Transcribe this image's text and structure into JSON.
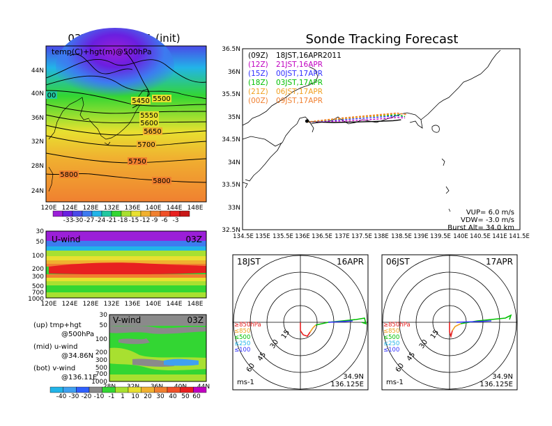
{
  "colors": {
    "frame": "#000000",
    "temp_scale": [
      "#9b1fd8",
      "#6a1fe0",
      "#4a4ae8",
      "#3d7bf0",
      "#22b4e8",
      "#22c8a0",
      "#33d633",
      "#a8e030",
      "#e8e030",
      "#f0b030",
      "#f08030",
      "#f05028",
      "#e82020",
      "#c81818"
    ],
    "wind_scale": [
      "#22b4e8",
      "#3fa0f0",
      "#2f60ff",
      "#8a8a8a",
      "#33d633",
      "#a8e030",
      "#e8e030",
      "#f0b030",
      "#f08030",
      "#f05028",
      "#e82020",
      "#c000c0"
    ],
    "track_09z": "#000000",
    "track_12z": "#c000c0",
    "track_15z": "#2f2fff",
    "track_18z": "#00c000",
    "track_21z": "#f0a020",
    "track_00z": "#f08030"
  },
  "left": {
    "top_title": "03Z,16APR2011 (init)",
    "temp_panel": {
      "label": "temp(C)+hgt(m)@500hPa",
      "lat_ticks": [
        "44N",
        "40N",
        "36N",
        "32N",
        "28N",
        "24N"
      ],
      "lon_ticks": [
        "120E",
        "124E",
        "128E",
        "132E",
        "136E",
        "140E",
        "144E",
        "148E"
      ],
      "contour_labels": [
        "5450",
        "5500",
        "5550",
        "5600",
        "5650",
        "5700",
        "5750",
        "5800",
        "5800",
        "00"
      ],
      "colorbar_ticks": [
        "-33",
        "-30",
        "-27",
        "-24",
        "-21",
        "-18",
        "-15",
        "-12",
        "-9",
        "-6",
        "-3"
      ]
    },
    "uwind_panel": {
      "label": "U-wind",
      "time": "03Z",
      "pres_ticks": [
        "30",
        "50",
        "100",
        "200",
        "300",
        "500",
        "700",
        "1000"
      ],
      "lon_ticks": [
        "120E",
        "124E",
        "128E",
        "132E",
        "136E",
        "140E",
        "144E",
        "148E"
      ]
    },
    "vwind_panel": {
      "label": "V-wind",
      "time": "03Z",
      "pres_ticks": [
        "30",
        "50",
        "100",
        "200",
        "300",
        "500",
        "700",
        "1000"
      ],
      "lat_ticks": [
        "28N",
        "32N",
        "36N",
        "40N",
        "44N"
      ]
    },
    "legend": {
      "line1": "(up) tmp+hgt",
      "line2": "@500hPa",
      "line3": "(mid) u-wind",
      "line4": "@34.86N",
      "line5": "(bot) v-wind",
      "line6": "@136.11E"
    },
    "wind_colorbar_ticks": [
      "-40",
      "-30",
      "-20",
      "-10",
      "-1",
      "1",
      "10",
      "20",
      "30",
      "40",
      "50",
      "60"
    ]
  },
  "right": {
    "title": "Sonde Tracking Forecast",
    "map": {
      "lat_ticks": [
        "36.5N",
        "36N",
        "35.5N",
        "35N",
        "34.5N",
        "34N",
        "33.5N",
        "33N",
        "32.5N"
      ],
      "lon_ticks": [
        "134.5E",
        "135E",
        "135.5E",
        "136E",
        "136.5E",
        "137E",
        "137.5E",
        "138E",
        "138.5E",
        "139E",
        "139.5E",
        "140E",
        "140.5E",
        "141E",
        "141.5E"
      ],
      "runs": [
        {
          "code": "(09Z)",
          "label": "18JST,16APR2011"
        },
        {
          "code": "(12Z)",
          "label": "21JST,16APR"
        },
        {
          "code": "(15Z)",
          "label": "00JST,17APR"
        },
        {
          "code": "(18Z)",
          "label": "03JST,17APR"
        },
        {
          "code": "(21Z)",
          "label": "06JST,17APR"
        },
        {
          "code": "(00Z)",
          "label": "09JST,17APR"
        }
      ],
      "vup": "VUP= 6.0 m/s",
      "vdw": "VDW= -3.0 m/s",
      "burst": "Burst Alt= 34.0 km"
    },
    "polar_left": {
      "time": "18JST",
      "date": "16APR",
      "ring_labels": [
        "15",
        "30",
        "45",
        "60"
      ],
      "levels": [
        "≥850hPa",
        "≤850",
        "≤500",
        "≤250",
        "≤100"
      ],
      "unit": "ms-1",
      "lat": "34.9N",
      "lon": "136.125E"
    },
    "polar_right": {
      "time": "06JST",
      "date": "17APR",
      "ring_labels": [
        "15",
        "30",
        "45",
        "60"
      ],
      "levels": [
        "≥850hPa",
        "≤850",
        "≤500",
        "≤250",
        "≤100"
      ],
      "unit": "ms-1",
      "lat": "34.9N",
      "lon": "136.125E"
    }
  },
  "chart_data": [
    {
      "type": "heatmap",
      "title": "03Z,16APR2011 (init)",
      "subtitle": "temp(C)+hgt(m)@500hPa",
      "xlim": [
        120,
        150
      ],
      "ylim": [
        22,
        48
      ],
      "contour_levels_m": [
        5450,
        5500,
        5550,
        5600,
        5650,
        5700,
        5750,
        5800
      ],
      "color_levels_C": [
        -33,
        -30,
        -27,
        -24,
        -21,
        -18,
        -15,
        -12,
        -9,
        -6,
        -3
      ]
    },
    {
      "type": "heatmap",
      "subtitle": "U-wind",
      "xlim": [
        120,
        150
      ],
      "yaxis_hPa": [
        30,
        50,
        100,
        200,
        300,
        500,
        700,
        1000
      ],
      "color_levels_ms": [
        -40,
        -30,
        -20,
        -10,
        -1,
        1,
        10,
        20,
        30,
        40,
        50,
        60
      ]
    },
    {
      "type": "heatmap",
      "subtitle": "V-wind",
      "xlim": [
        26,
        44
      ],
      "yaxis_hPa": [
        30,
        50,
        100,
        200,
        300,
        500,
        700,
        1000
      ],
      "color_levels_ms": [
        -40,
        -30,
        -20,
        -10,
        -1,
        1,
        10,
        20,
        30,
        40,
        50,
        60
      ]
    },
    {
      "type": "line",
      "title": "Sonde Tracking Forecast",
      "xlim": [
        134.5,
        141.5
      ],
      "ylim": [
        32.5,
        36.5
      ],
      "launch": {
        "lon": 136.125,
        "lat": 34.9
      },
      "series": [
        {
          "name": "(09Z) 18JST,16APR2011",
          "x": [
            136.125,
            136.4,
            136.8,
            137.3,
            137.8,
            138.3,
            138.5
          ],
          "y": [
            34.88,
            34.88,
            34.87,
            34.88,
            34.89,
            34.91,
            34.93
          ]
        },
        {
          "name": "(12Z) 21JST,16APR",
          "x": [
            136.125,
            136.5,
            137.0,
            137.5,
            138.0,
            138.4,
            138.6
          ],
          "y": [
            34.88,
            34.89,
            34.9,
            34.92,
            34.95,
            34.98,
            34.97
          ]
        },
        {
          "name": "(15Z) 00JST,17APR",
          "x": [
            136.125,
            136.5,
            137.0,
            137.5,
            138.0,
            138.4,
            138.6
          ],
          "y": [
            34.88,
            34.9,
            34.93,
            34.96,
            34.99,
            35.02,
            35.0
          ]
        },
        {
          "name": "(18Z) 03JST,17APR",
          "x": [
            136.125,
            136.5,
            137.0,
            137.5,
            138.0,
            138.4,
            138.6
          ],
          "y": [
            34.88,
            34.91,
            34.95,
            34.99,
            35.02,
            35.04,
            35.0
          ]
        },
        {
          "name": "(21Z) 06JST,17APR",
          "x": [
            136.125,
            136.5,
            137.0,
            137.5,
            138.0,
            138.4,
            138.65
          ],
          "y": [
            34.88,
            34.91,
            34.95,
            34.99,
            35.03,
            35.07,
            35.05
          ]
        },
        {
          "name": "(00Z) 09JST,17APR",
          "x": [
            136.125,
            136.5,
            137.0,
            137.5,
            138.0,
            138.4,
            138.65
          ],
          "y": [
            34.88,
            34.92,
            34.97,
            35.01,
            35.05,
            35.08,
            35.04
          ]
        }
      ]
    }
  ]
}
